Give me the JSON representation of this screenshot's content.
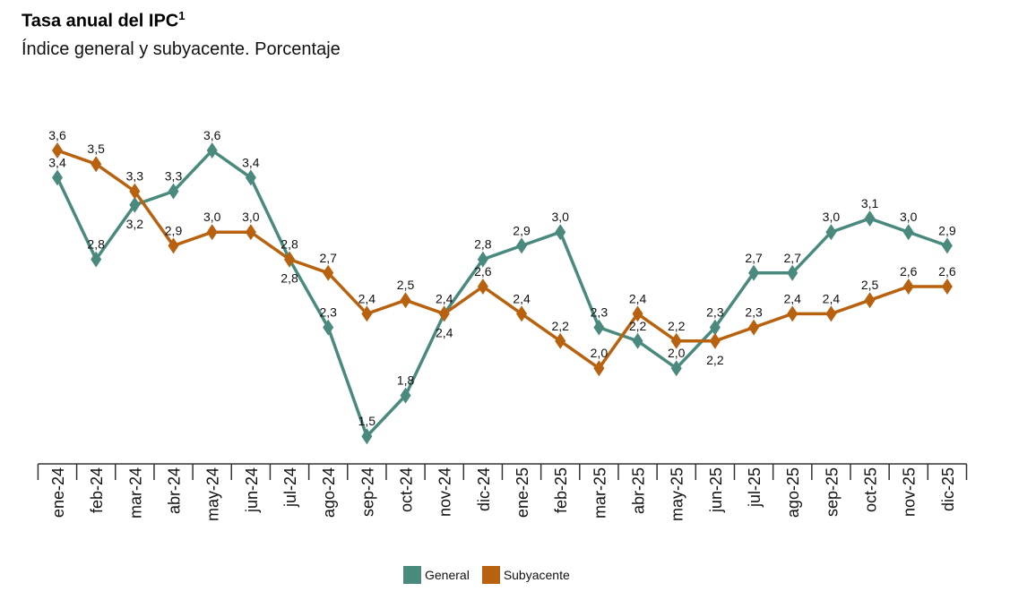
{
  "title": "Tasa anual del IPC",
  "title_superscript": "1",
  "subtitle": "Índice general y subyacente. Porcentaje",
  "chart_data": {
    "type": "line",
    "title": "Tasa anual del IPC",
    "subtitle": "Índice general y subyacente. Porcentaje",
    "categories": [
      "ene-24",
      "feb-24",
      "mar-24",
      "abr-24",
      "may-24",
      "jun-24",
      "jul-24",
      "ago-24",
      "sep-24",
      "oct-24",
      "nov-24",
      "dic-24",
      "ene-25",
      "feb-25",
      "mar-25",
      "abr-25",
      "may-25",
      "jun-25",
      "jul-25",
      "ago-25",
      "sep-25",
      "oct-25",
      "nov-25",
      "dic-25"
    ],
    "series": [
      {
        "name": "General",
        "color": "#4a8a7e",
        "values": [
          3.4,
          2.8,
          3.2,
          3.3,
          3.6,
          3.4,
          2.8,
          2.3,
          1.5,
          1.8,
          2.4,
          2.8,
          2.9,
          3.0,
          2.3,
          2.2,
          2.0,
          2.3,
          2.7,
          2.7,
          3.0,
          3.1,
          3.0,
          2.9
        ]
      },
      {
        "name": "Subyacente",
        "color": "#b8610f",
        "values": [
          3.6,
          3.5,
          3.3,
          2.9,
          3.0,
          3.0,
          2.8,
          2.7,
          2.4,
          2.5,
          2.4,
          2.6,
          2.4,
          2.2,
          2.0,
          2.4,
          2.2,
          2.2,
          2.3,
          2.4,
          2.4,
          2.5,
          2.6,
          2.6
        ]
      }
    ],
    "marker": "diamond",
    "data_labels": true,
    "decimal_separator": ",",
    "y_axis_visible": false,
    "grid": false,
    "legend_position": "bottom"
  }
}
